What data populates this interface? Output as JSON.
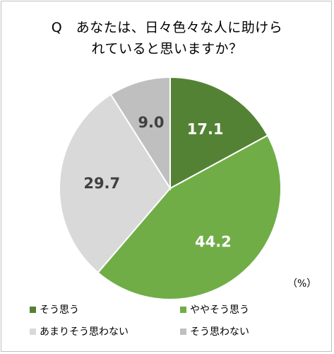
{
  "chart_data": {
    "type": "pie",
    "title_line1": "Q　あなたは、日々色々な人に助けら",
    "title_line2": "れていると思いますか？",
    "unit": "（%）",
    "start_angle_deg": 0,
    "direction": "clockwise",
    "slices": [
      {
        "label": "そう思う",
        "value": 17.1,
        "display": "17.1",
        "color": "#548235",
        "text_color": "#ffffff"
      },
      {
        "label": "ややそう思う",
        "value": 44.2,
        "display": "44.2",
        "color": "#70ad47",
        "text_color": "#ffffff"
      },
      {
        "label": "あまりそう思わない",
        "value": 29.7,
        "display": "29.7",
        "color": "#d9d9d9",
        "text_color": "#404040"
      },
      {
        "label": "そう思わない",
        "value": 9.0,
        "display": "9.0",
        "color": "#bfbfbf",
        "text_color": "#404040"
      }
    ]
  }
}
